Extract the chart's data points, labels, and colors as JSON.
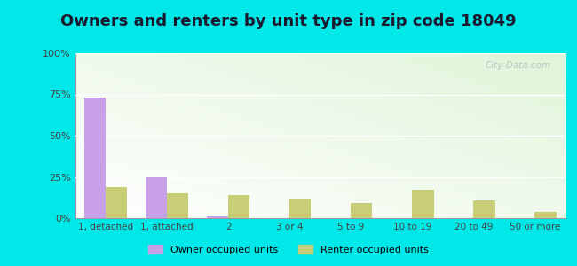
{
  "title": "Owners and renters by unit type in zip code 18049",
  "categories": [
    "1, detached",
    "1, attached",
    "2",
    "3 or 4",
    "5 to 9",
    "10 to 19",
    "20 to 49",
    "50 or more"
  ],
  "owner_values": [
    73,
    25,
    1,
    0,
    0,
    0,
    0,
    0
  ],
  "renter_values": [
    19,
    15,
    14,
    12,
    9,
    17,
    11,
    4
  ],
  "owner_color": "#c8a0e8",
  "renter_color": "#c8ce78",
  "background_color": "#00e8e8",
  "title_fontsize": 13,
  "title_color": "#1a1a2e",
  "legend_owner": "Owner occupied units",
  "legend_renter": "Renter occupied units",
  "ylim": [
    0,
    100
  ],
  "yticks": [
    0,
    25,
    50,
    75,
    100
  ],
  "ytick_labels": [
    "0%",
    "25%",
    "50%",
    "75%",
    "100%"
  ],
  "watermark": "City-Data.com",
  "bar_width": 0.35
}
